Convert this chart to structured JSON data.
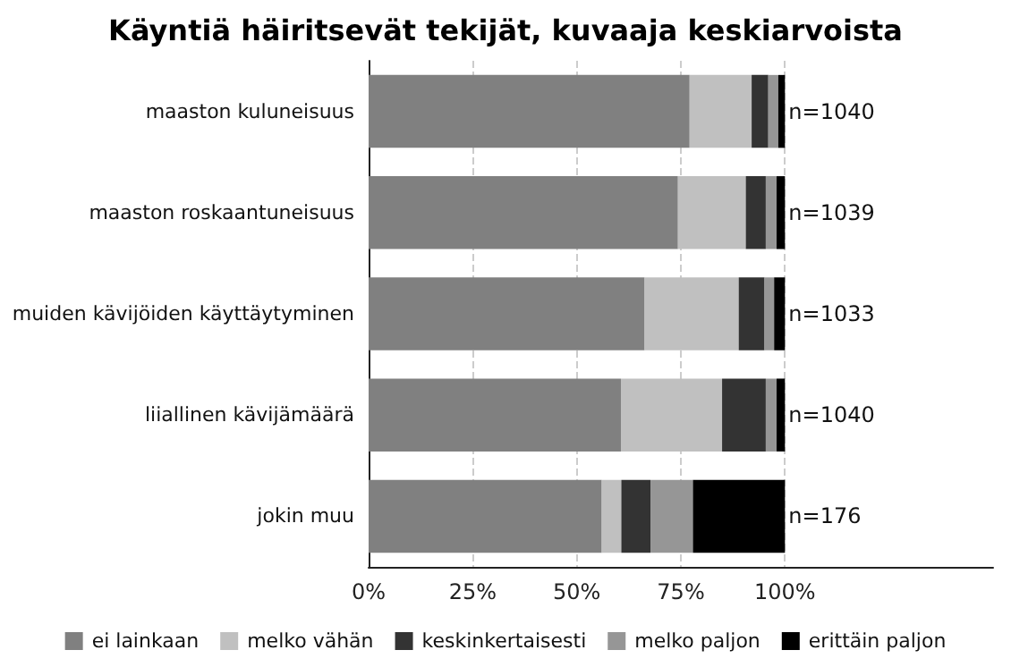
{
  "chart_data": {
    "type": "bar",
    "title": "Käyntiä häiritsevät tekijät, kuvaaja keskiarvoista",
    "orientation": "horizontal",
    "stacked": true,
    "categories": [
      "maaston kuluneisuus",
      "maaston roskaantuneisuus",
      "muiden kävijöiden käyttäytyminen",
      "liiallinen kävijämäärä",
      "jokin muu"
    ],
    "series": [
      {
        "name": "ei lainkaan",
        "color": "#808080",
        "values": [
          77.1,
          74.3,
          66.3,
          60.6,
          56.0
        ]
      },
      {
        "name": "melko vähän",
        "color": "#c0c0c0",
        "values": [
          14.9,
          16.3,
          22.6,
          24.3,
          4.7
        ]
      },
      {
        "name": "keskinkertaisesti",
        "color": "#333333",
        "values": [
          4.0,
          4.8,
          6.2,
          10.5,
          7.0
        ]
      },
      {
        "name": "melko paljon",
        "color": "#969696",
        "values": [
          2.4,
          2.6,
          2.3,
          2.6,
          10.2
        ]
      },
      {
        "name": "erittäin paljon",
        "color": "#000000",
        "values": [
          1.6,
          2.0,
          2.6,
          2.0,
          22.1
        ]
      }
    ],
    "xlim": [
      0,
      150
    ],
    "xticks": [
      {
        "value": 0,
        "label": "0%"
      },
      {
        "value": 25,
        "label": "25%"
      },
      {
        "value": 50,
        "label": "50%"
      },
      {
        "value": 75,
        "label": "75%"
      },
      {
        "value": 100,
        "label": "100%"
      }
    ],
    "grid": "x",
    "legend": "bottom",
    "annotations": [
      "n=1040",
      "n=1039",
      "n=1033",
      "n=1040",
      "n=176"
    ]
  }
}
